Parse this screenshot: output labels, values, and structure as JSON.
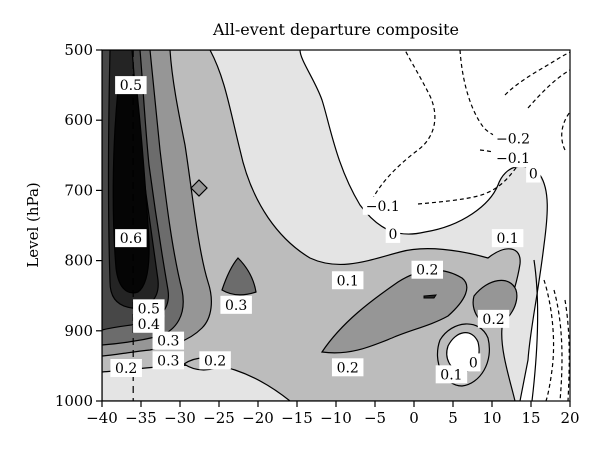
{
  "chart_data": {
    "type": "filled-contour",
    "title": "All-event departure composite",
    "xlabel": "",
    "ylabel": "Level (hPa)",
    "xlim": [
      -40,
      20
    ],
    "ylim": [
      1000,
      500
    ],
    "y_reversed": true,
    "xticks": [
      -40,
      -35,
      -30,
      -25,
      -20,
      -15,
      -10,
      -5,
      0,
      5,
      10,
      15,
      20
    ],
    "xtick_labels": [
      "−40",
      "−35",
      "−30",
      "−25",
      "−20",
      "−15",
      "−10",
      "−5",
      "0",
      "5",
      "10",
      "15",
      "20"
    ],
    "yticks": [
      500,
      600,
      700,
      800,
      900,
      1000
    ],
    "ytick_labels": [
      "500",
      "600",
      "700",
      "800",
      "900",
      "1000"
    ],
    "reference_line_x": -36,
    "levels": [
      -0.3,
      -0.2,
      -0.1,
      0,
      0.1,
      0.2,
      0.3,
      0.4,
      0.5,
      0.6
    ],
    "negative_contour_style": "dashed",
    "fill_scheme": "grayscale, darker = larger positive departure",
    "contour_labels": [
      {
        "text": "0.5",
        "x": -36.3,
        "y": 550
      },
      {
        "text": "0.6",
        "x": -36.3,
        "y": 768
      },
      {
        "text": "0.5",
        "x": -34.0,
        "y": 868
      },
      {
        "text": "0.4",
        "x": -34.0,
        "y": 890
      },
      {
        "text": "0.3",
        "x": -31.5,
        "y": 914
      },
      {
        "text": "0.3",
        "x": -31.5,
        "y": 942
      },
      {
        "text": "0.2",
        "x": -36.9,
        "y": 953
      },
      {
        "text": "0.2",
        "x": -25.5,
        "y": 942
      },
      {
        "text": "0.3",
        "x": -22.8,
        "y": 863
      },
      {
        "text": "0.1",
        "x": -8.5,
        "y": 828
      },
      {
        "text": "0.2",
        "x": 1.7,
        "y": 813
      },
      {
        "text": "0.1",
        "x": 12.0,
        "y": 768
      },
      {
        "text": "0.2",
        "x": 10.2,
        "y": 883
      },
      {
        "text": "0.2",
        "x": -8.5,
        "y": 952
      },
      {
        "text": "0.1",
        "x": 4.8,
        "y": 962
      },
      {
        "text": "0",
        "x": 7.6,
        "y": 945
      },
      {
        "text": "0",
        "x": -2.7,
        "y": 762
      },
      {
        "text": "−0.1",
        "x": -4.0,
        "y": 722
      },
      {
        "text": "−0.2",
        "x": 12.7,
        "y": 626
      },
      {
        "text": "−0.1",
        "x": 12.7,
        "y": 654
      },
      {
        "text": "0",
        "x": 15.3,
        "y": 676
      }
    ]
  }
}
